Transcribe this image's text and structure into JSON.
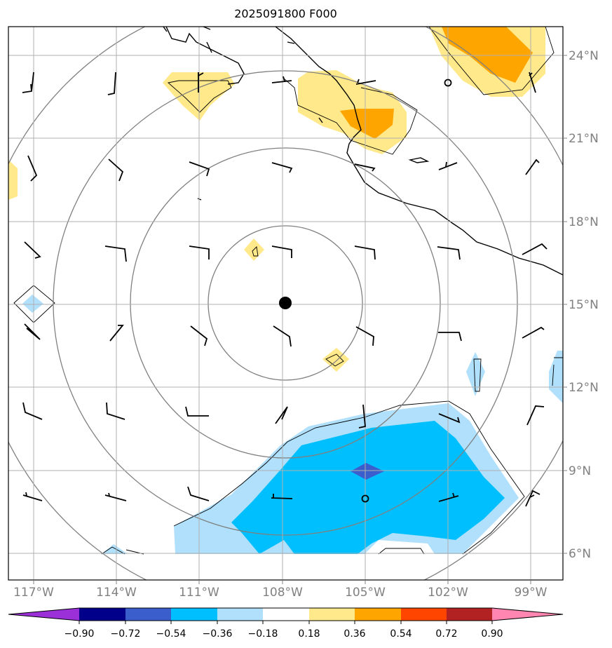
{
  "title": "2025091800 F000",
  "lon_labels": [
    "117°W",
    "114°W",
    "111°W",
    "108°W",
    "105°W",
    "102°W",
    "99°W"
  ],
  "lat_labels": [
    "24°N",
    "21°N",
    "18°N",
    "15°N",
    "12°N",
    "9°N",
    "6°N"
  ],
  "colorbar": {
    "labels": [
      "−0.90",
      "−0.72",
      "−0.54",
      "−0.36",
      "−0.18",
      "0.18",
      "0.36",
      "0.54",
      "0.72",
      "0.90"
    ],
    "colors": [
      "#9b30d9",
      "#00008b",
      "#3a5fcd",
      "#00bfff",
      "#b0e0fb",
      "#ffffff",
      "#ffe98a",
      "#ffa500",
      "#ff4500",
      "#b22222",
      "#ff86b0"
    ]
  },
  "center_marker": {
    "lat": 15.0,
    "lon": -108.0
  },
  "colors": {
    "range_rings": "#808080",
    "grid": "#b0b0b0",
    "coast": "#000000"
  }
}
